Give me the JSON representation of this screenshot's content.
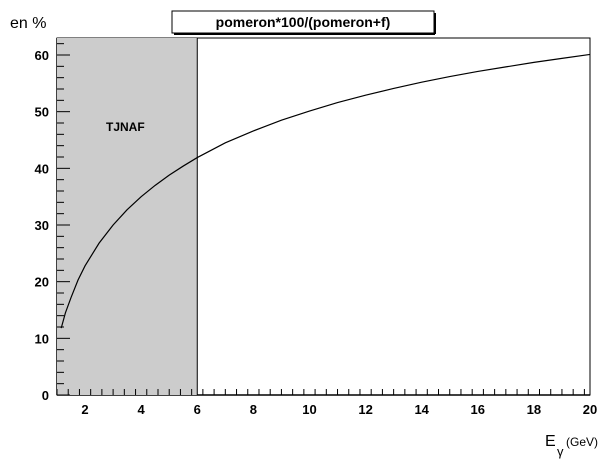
{
  "chart_data": {
    "type": "line",
    "title": "pomeron*100/(pomeron+f)",
    "ylabel": "en %",
    "xlabel_main": "E",
    "xlabel_sub": "γ",
    "xlabel_unit": "(GeV)",
    "xlim": [
      1,
      20
    ],
    "ylim": [
      0,
      63
    ],
    "x_ticks": [
      2,
      4,
      6,
      8,
      10,
      12,
      14,
      16,
      18,
      20
    ],
    "y_ticks": [
      10,
      20,
      30,
      40,
      50,
      60
    ],
    "x_tick_labels": [
      "2",
      "4",
      "6",
      "8",
      "10",
      "12",
      "14",
      "16",
      "18",
      "20"
    ],
    "y_tick_labels": [
      "10",
      "20",
      "30",
      "40",
      "50",
      "60"
    ],
    "grid": false,
    "shaded_region": {
      "x_start": 1,
      "x_end": 6,
      "label": "TJNAF",
      "color": "#cccccc"
    },
    "series": [
      {
        "x": [
          1.15,
          1.3,
          1.5,
          1.75,
          2,
          2.5,
          3,
          3.5,
          4,
          4.5,
          5,
          5.5,
          6,
          7,
          8,
          9,
          10,
          11,
          12,
          13,
          14,
          15,
          16,
          17,
          18,
          19,
          20
        ],
        "values": [
          11.8,
          14.5,
          17.2,
          20.3,
          22.8,
          26.8,
          30.0,
          32.7,
          35.0,
          37.0,
          38.8,
          40.4,
          41.9,
          44.5,
          46.6,
          48.5,
          50.1,
          51.6,
          52.9,
          54.1,
          55.2,
          56.2,
          57.1,
          57.9,
          58.7,
          59.4,
          60.1
        ],
        "color": "#000000"
      }
    ]
  }
}
